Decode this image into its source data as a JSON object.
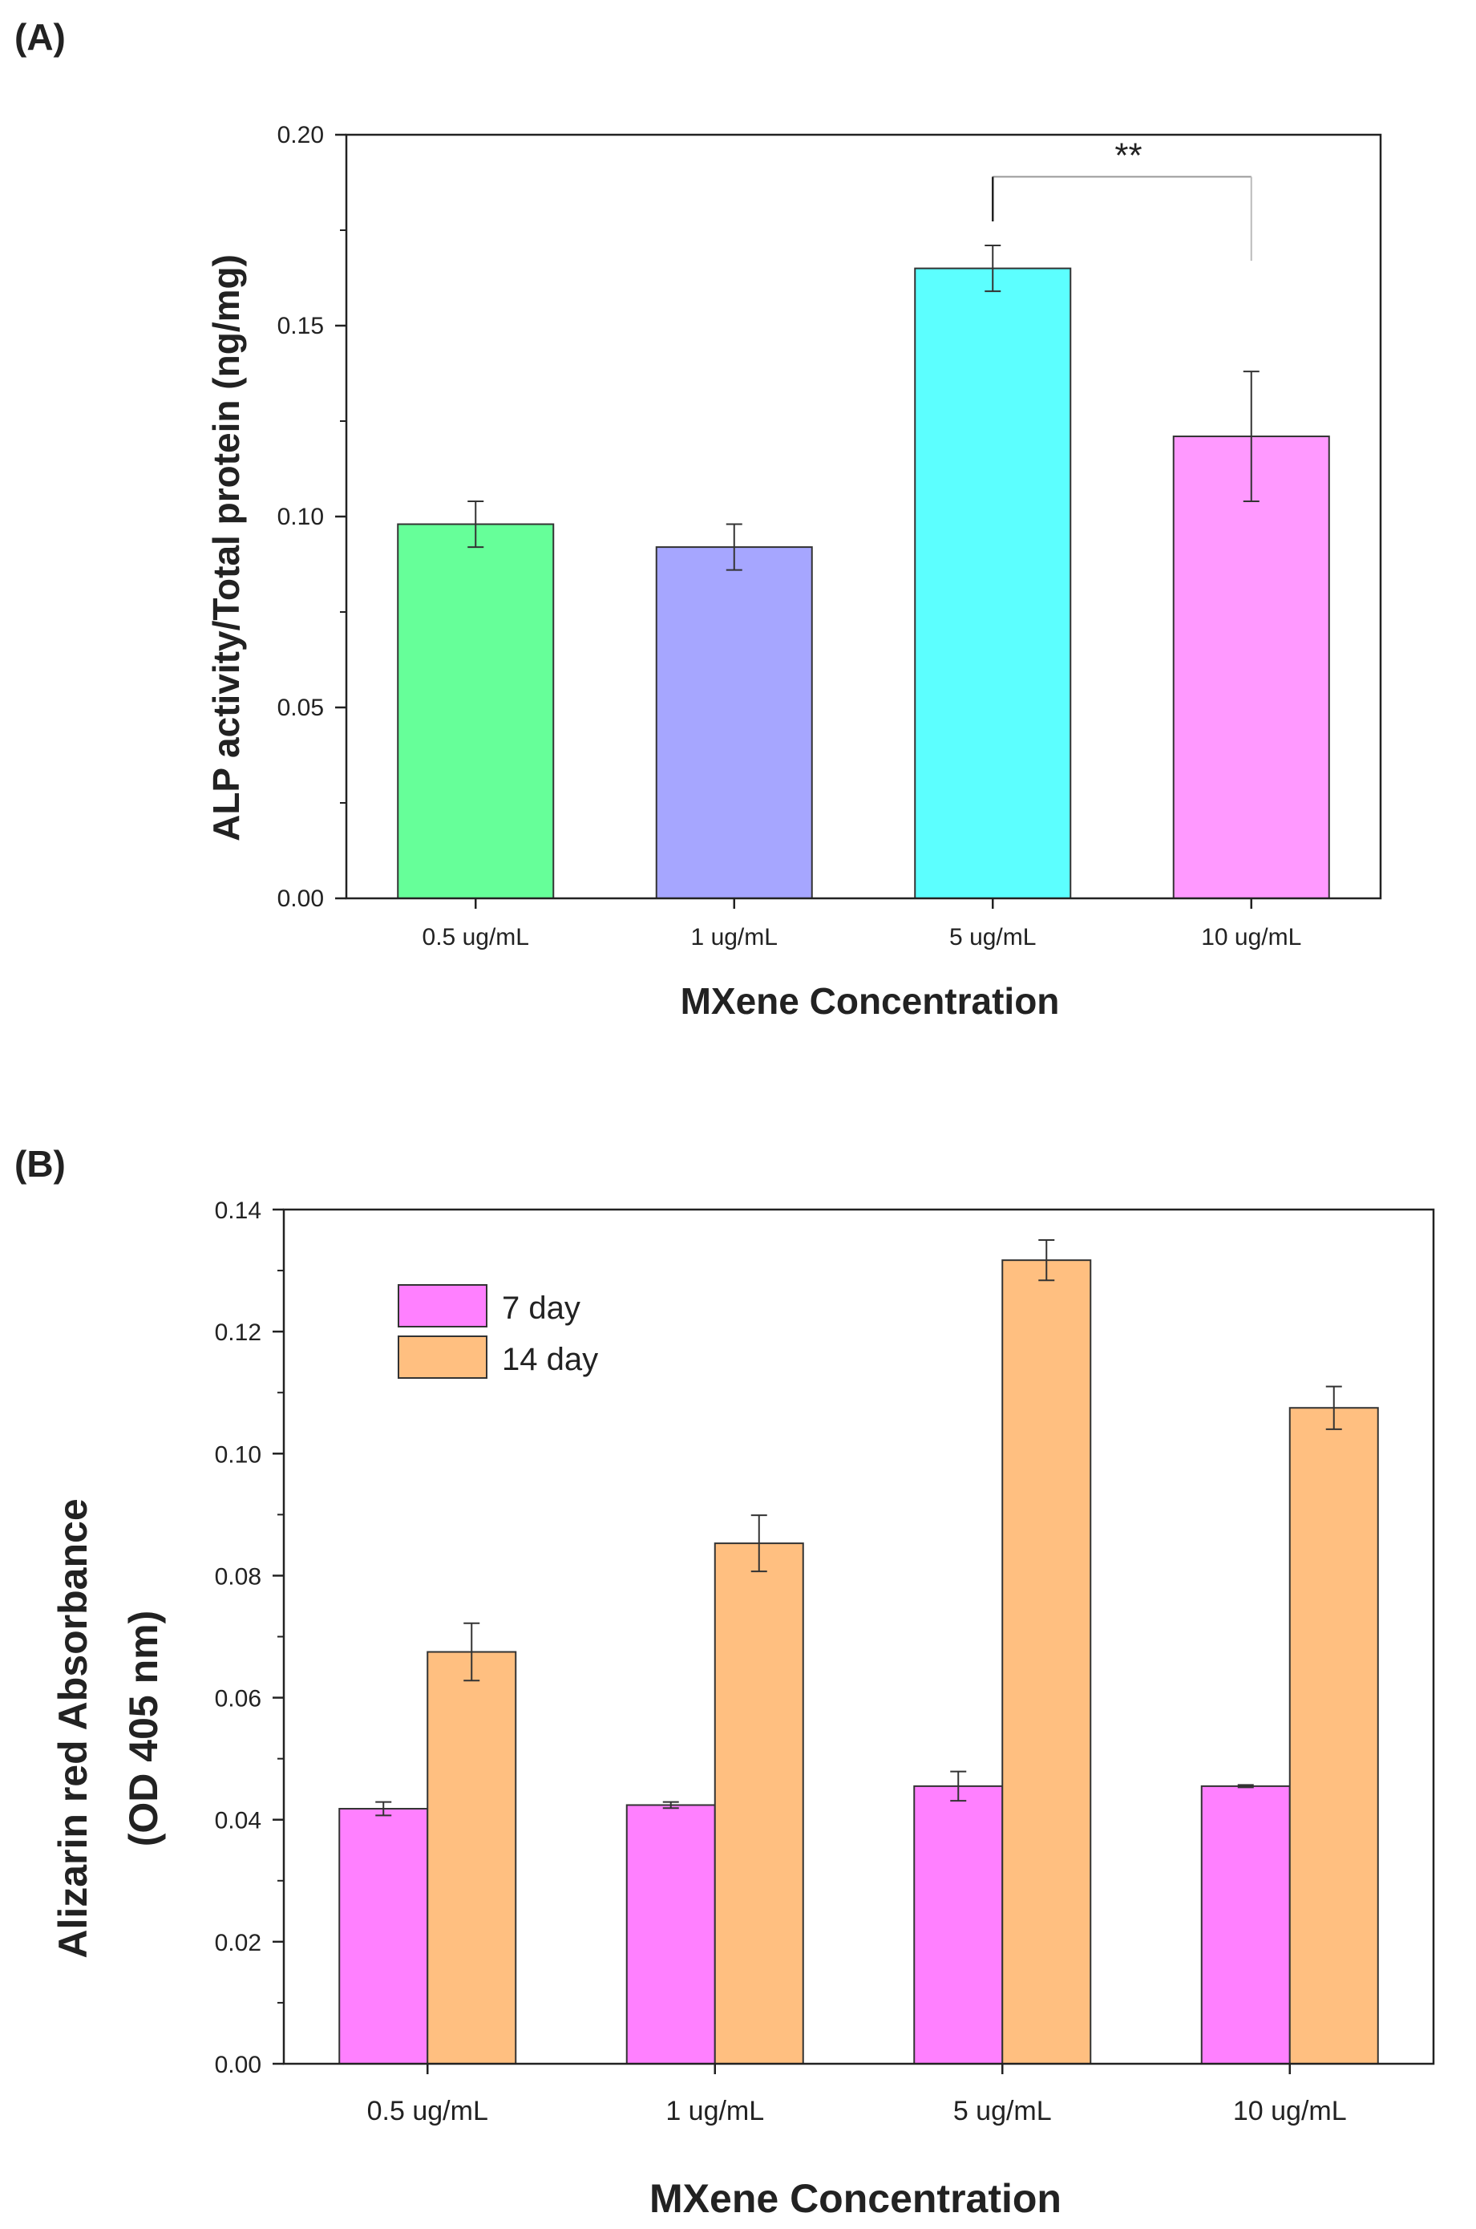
{
  "chart_data": [
    {
      "panel_label": "(A)",
      "type": "bar",
      "categories": [
        "0.5 ug/mL",
        "1 ug/mL",
        "5 ug/mL",
        "10 ug/mL"
      ],
      "series": [
        {
          "name": "ALP activity",
          "values": [
            0.098,
            0.092,
            0.165,
            0.121
          ],
          "errors": [
            0.006,
            0.006,
            0.006,
            0.017
          ],
          "colors": [
            "#66ff99",
            "#a6a6ff",
            "#5cffff",
            "#ff99ff"
          ]
        }
      ],
      "ylim": [
        0,
        0.2
      ],
      "yticks": [
        "0.00",
        "0.05",
        "0.10",
        "0.15",
        "0.20"
      ],
      "xlabel": "MXene Concentration",
      "ylabel": "ALP activity/Total protein (ng/mg)",
      "annotations": [
        {
          "text": "**",
          "from_category": 2,
          "to_category": 3,
          "bracket_value": 0.189
        }
      ]
    },
    {
      "panel_label": "(B)",
      "type": "bar",
      "categories": [
        "0.5 ug/mL",
        "1 ug/mL",
        "5 ug/mL",
        "10 ug/mL"
      ],
      "series": [
        {
          "name": "7 day",
          "values": [
            0.0418,
            0.0424,
            0.0455,
            0.0455
          ],
          "errors": [
            0.0011,
            0.0005,
            0.0024,
            0.0002
          ],
          "color": "#ff80ff"
        },
        {
          "name": "14 day",
          "values": [
            0.0675,
            0.0853,
            0.1317,
            0.1075
          ],
          "errors": [
            0.0047,
            0.0046,
            0.0033,
            0.0035
          ],
          "color": "#ffbf80"
        }
      ],
      "ylim": [
        0,
        0.14
      ],
      "yticks": [
        "0.00",
        "0.02",
        "0.04",
        "0.06",
        "0.08",
        "0.10",
        "0.12",
        "0.14"
      ],
      "xlabel": "MXene Concentration",
      "ylabel_lines": [
        "Alizarin red Absorbance",
        "(OD 405 nm)"
      ],
      "legend": "top-left"
    }
  ]
}
